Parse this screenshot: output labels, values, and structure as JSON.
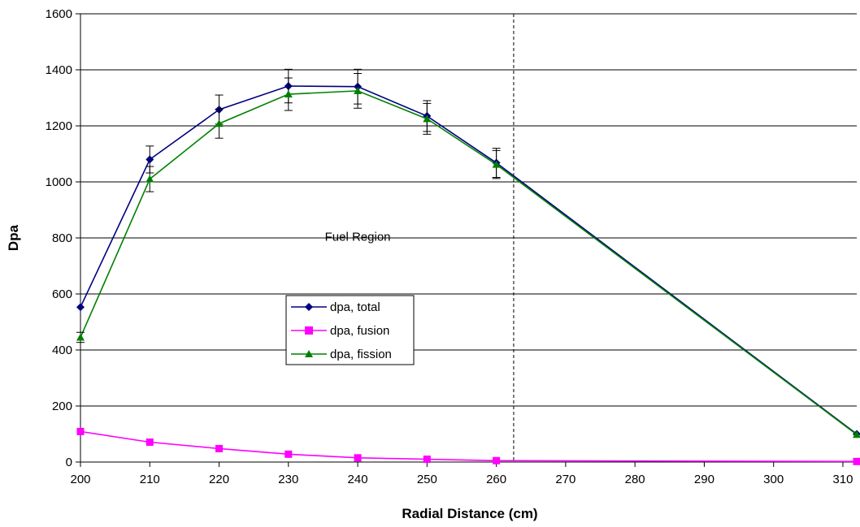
{
  "chart_data": {
    "type": "line",
    "title": "",
    "xlabel": "Radial Distance (cm)",
    "ylabel": "Dpa",
    "xlim": [
      200,
      312
    ],
    "ylim": [
      0,
      1600
    ],
    "x_ticks": [
      200,
      210,
      220,
      230,
      240,
      250,
      260,
      270,
      280,
      290,
      300,
      310
    ],
    "y_ticks": [
      0,
      200,
      400,
      600,
      800,
      1000,
      1200,
      1400,
      1600
    ],
    "grid": "horizontal",
    "legend_position": "center-left",
    "annotations": [
      {
        "text": "Fuel Region",
        "x": 240,
        "y": 790
      }
    ],
    "reference_lines": [
      {
        "orientation": "vertical",
        "x": 262.5,
        "style": "dashed"
      }
    ],
    "series": [
      {
        "name": "dpa, total",
        "color": "#000080",
        "marker": "diamond",
        "x": [
          200,
          210,
          220,
          230,
          240,
          250,
          260,
          312
        ],
        "y": [
          553,
          1080,
          1258,
          1342,
          1340,
          1235,
          1068,
          100
        ],
        "error": [
          0,
          48,
          52,
          60,
          62,
          55,
          52,
          0
        ]
      },
      {
        "name": "dpa, fusion",
        "color": "#FF00FF",
        "marker": "square",
        "x": [
          200,
          210,
          220,
          230,
          240,
          250,
          260,
          312
        ],
        "y": [
          109,
          71,
          48,
          28,
          15,
          10,
          5,
          2
        ],
        "error": []
      },
      {
        "name": "dpa, fission",
        "color": "#008000",
        "marker": "triangle",
        "x": [
          200,
          210,
          220,
          230,
          240,
          250,
          260,
          312
        ],
        "y": [
          445,
          1010,
          1208,
          1313,
          1325,
          1225,
          1062,
          98
        ],
        "error": [
          18,
          45,
          52,
          58,
          62,
          55,
          50,
          0
        ]
      }
    ]
  }
}
